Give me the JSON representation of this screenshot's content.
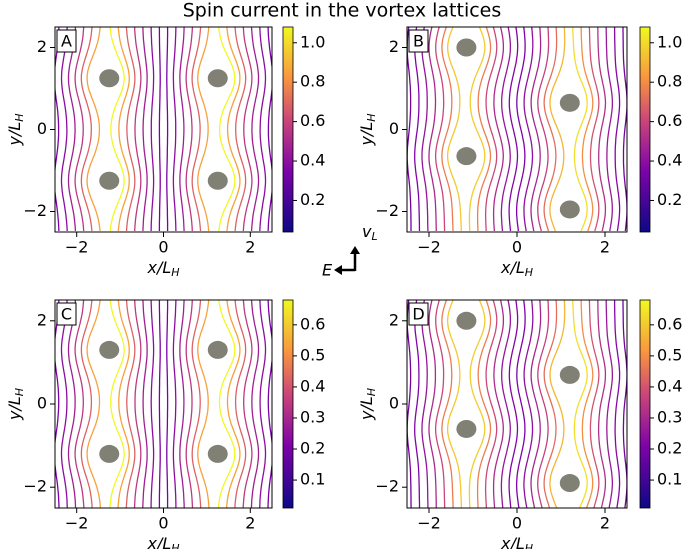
{
  "title": "Spin current in the vortex lattices",
  "arrows": {
    "horizontal": "E",
    "vertical": {
      "main": "v",
      "sub": "L"
    }
  },
  "chart_data": [
    {
      "type": "streamplot",
      "panel_label": "A",
      "xlabel": {
        "main": "x/L",
        "sub": "H"
      },
      "ylabel": {
        "main": "y/L",
        "sub": "H"
      },
      "xlim": [
        -2.5,
        2.5
      ],
      "ylim": [
        -2.5,
        2.5
      ],
      "xticks": [
        {
          "value": -2,
          "label": "−2"
        },
        0,
        2
      ],
      "yticks": [
        {
          "value": -2,
          "label": "−2"
        },
        0,
        2
      ],
      "vortices": {
        "x": [
          -1.25,
          1.25,
          -1.25,
          1.25
        ],
        "y": [
          1.25,
          1.25,
          -1.25,
          -1.25
        ]
      },
      "colorbar": {
        "lim": [
          0.04,
          1.08
        ],
        "ticks": [
          0.2,
          0.4,
          0.6,
          0.8,
          {
            "value": 1,
            "label": "1.0"
          }
        ]
      }
    },
    {
      "type": "streamplot",
      "panel_label": "B",
      "xlabel": {
        "main": "x/L",
        "sub": "H"
      },
      "ylabel": {
        "main": "y/L",
        "sub": "H"
      },
      "xlim": [
        -2.5,
        2.5
      ],
      "ylim": [
        -2.5,
        2.5
      ],
      "xticks": [
        {
          "value": -2,
          "label": "−2"
        },
        0,
        2
      ],
      "yticks": [
        {
          "value": -2,
          "label": "−2"
        },
        0,
        2
      ],
      "vortices": {
        "x": [
          -1.15,
          -1.15,
          1.2,
          1.2
        ],
        "y": [
          2.0,
          -0.65,
          0.65,
          -1.95
        ]
      },
      "colorbar": {
        "lim": [
          0.04,
          1.08
        ],
        "ticks": [
          0.2,
          0.4,
          0.6,
          0.8,
          {
            "value": 1,
            "label": "1.0"
          }
        ]
      }
    },
    {
      "type": "streamplot",
      "panel_label": "C",
      "xlabel": {
        "main": "x/L",
        "sub": "H"
      },
      "ylabel": {
        "main": "y/L",
        "sub": "H"
      },
      "xlim": [
        -2.5,
        2.5
      ],
      "ylim": [
        -2.5,
        2.5
      ],
      "xticks": [
        {
          "value": -2,
          "label": "−2"
        },
        0,
        2
      ],
      "yticks": [
        {
          "value": -2,
          "label": "−2"
        },
        0,
        2
      ],
      "vortices": {
        "x": [
          -1.25,
          1.25,
          -1.25,
          1.25
        ],
        "y": [
          1.3,
          1.3,
          -1.2,
          -1.2
        ]
      },
      "colorbar": {
        "lim": [
          0.01,
          0.68
        ],
        "ticks": [
          0.1,
          0.2,
          0.3,
          0.4,
          0.5,
          0.6
        ]
      }
    },
    {
      "type": "streamplot",
      "panel_label": "D",
      "xlabel": {
        "main": "x/L",
        "sub": "H"
      },
      "ylabel": {
        "main": "y/L",
        "sub": "H"
      },
      "xlim": [
        -2.5,
        2.5
      ],
      "ylim": [
        -2.5,
        2.5
      ],
      "xticks": [
        {
          "value": -2,
          "label": "−2"
        },
        0,
        2
      ],
      "yticks": [
        {
          "value": -2,
          "label": "−2"
        },
        0,
        2
      ],
      "vortices": {
        "x": [
          -1.15,
          -1.15,
          1.2,
          1.2
        ],
        "y": [
          2.0,
          -0.6,
          0.7,
          -1.9
        ]
      },
      "colorbar": {
        "lim": [
          0.01,
          0.68
        ],
        "ticks": [
          0.1,
          0.2,
          0.3,
          0.4,
          0.5,
          0.6
        ]
      }
    }
  ]
}
